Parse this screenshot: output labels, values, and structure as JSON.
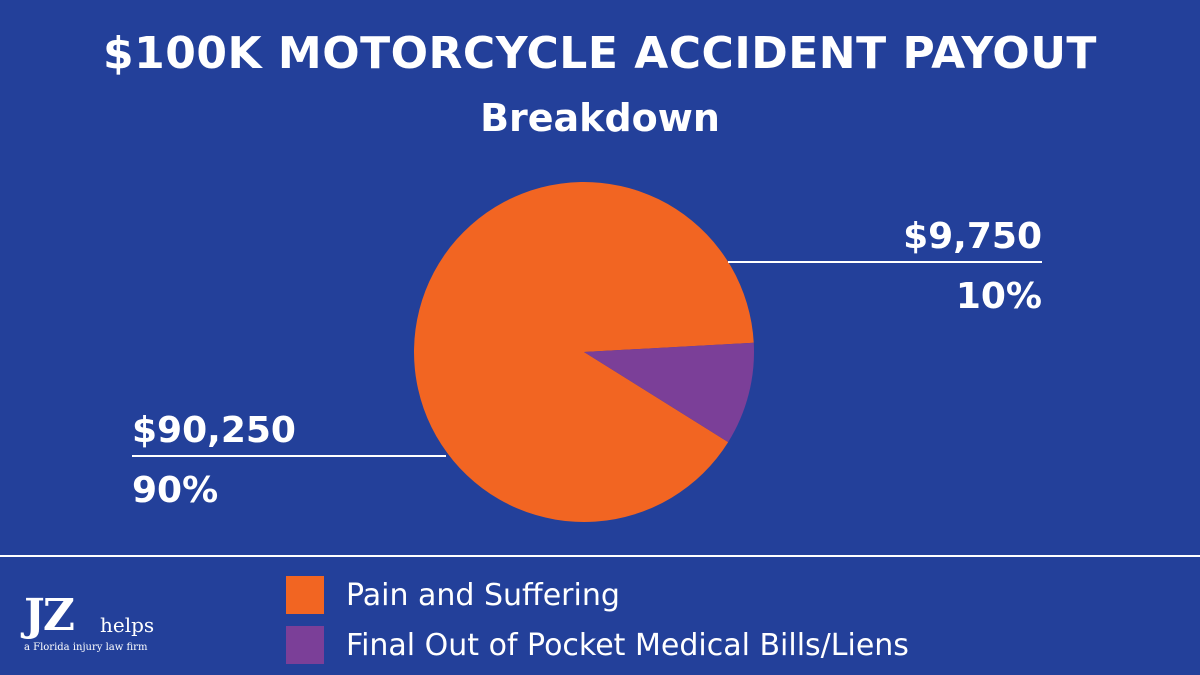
{
  "chart_data": {
    "type": "pie",
    "title": "$100K MOTORCYCLE ACCIDENT PAYOUT",
    "subtitle": "Breakdown",
    "slices": [
      {
        "name": "Pain and Suffering",
        "value": 90250,
        "value_label": "$90,250",
        "percent_label": "90%",
        "color": "#f26522"
      },
      {
        "name": "Final Out of Pocket Medical Bills/Liens",
        "value": 9750,
        "value_label": "$9,750",
        "percent_label": "10%",
        "color": "#7b3f98"
      }
    ],
    "legend_position": "bottom"
  },
  "logo": {
    "mark": "JZ",
    "word": "helps",
    "tagline": "a Florida injury law firm"
  },
  "colors": {
    "background": "#23409a",
    "text": "#ffffff"
  }
}
